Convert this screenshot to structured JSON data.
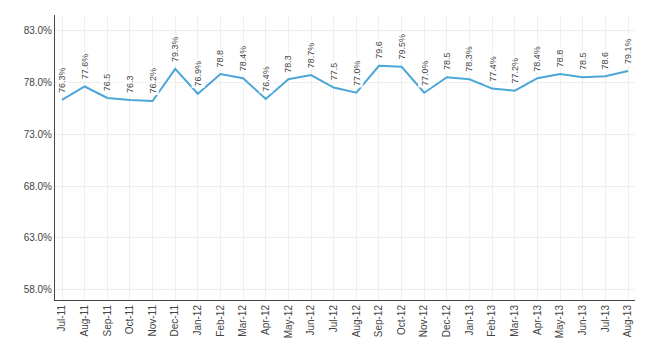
{
  "chart_data": {
    "type": "line",
    "categories": [
      "Jul-11",
      "Aug-11",
      "Sep-11",
      "Oct-11",
      "Nov-11",
      "Dec-11",
      "Jan-12",
      "Feb-12",
      "Mar-12",
      "Apr-12",
      "May-12",
      "Jun-12",
      "Jul-12",
      "Aug-12",
      "Sep-12",
      "Oct-12",
      "Nov-12",
      "Dec-12",
      "Jan-13",
      "Feb-13",
      "Mar-13",
      "Apr-13",
      "May-13",
      "Jun-13",
      "Jul-13",
      "Aug-13"
    ],
    "values": [
      76.3,
      77.6,
      76.5,
      76.3,
      76.2,
      79.3,
      76.9,
      78.8,
      78.4,
      76.4,
      78.3,
      78.7,
      77.5,
      77.0,
      79.6,
      79.5,
      77.0,
      78.5,
      78.3,
      77.4,
      77.2,
      78.4,
      78.8,
      78.5,
      78.6,
      79.1
    ],
    "value_labels": [
      "76.3%",
      "77.6%",
      "76.5",
      "76.3",
      "76.2%",
      "79.3%",
      "76.9%",
      "78.8",
      "78.4%",
      "76.4%",
      "78.3",
      "78.7%",
      "77.5",
      "77.0%",
      "79.6",
      "79.5%",
      "77.0%",
      "78.5",
      "78.3%",
      "77.4%",
      "77.2%",
      "78.4%",
      "78.8",
      "78.5",
      "78.6",
      "79.1%"
    ],
    "data_labels": true,
    "color": "#4da6d8",
    "ylim": [
      57.0,
      84.5
    ],
    "yticks": [
      {
        "value": 58.0,
        "label": "58.0%"
      },
      {
        "value": 63.0,
        "label": "63.0%"
      },
      {
        "value": 68.0,
        "label": "68.0%"
      },
      {
        "value": 73.0,
        "label": "73.0%"
      },
      {
        "value": 78.0,
        "label": "78.0%"
      },
      {
        "value": 83.0,
        "label": "83.0%"
      }
    ],
    "grid": true
  }
}
